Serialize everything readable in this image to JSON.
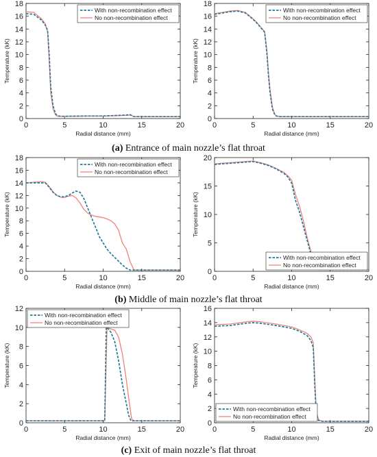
{
  "colors": {
    "with_effect": "#1f7a99",
    "no_effect": "#f08078",
    "axis": "#222222"
  },
  "captions": [
    {
      "label": "(a)",
      "text": " Entrance of main nozzle’s flat throat"
    },
    {
      "label": "(b)",
      "text": " Middle of main nozzle’s flat throat"
    },
    {
      "label": "(c)",
      "text": " Exit of main nozzle’s flat throat"
    }
  ],
  "chart_data": [
    {
      "type": "line",
      "panel": "a-left",
      "xlabel": "Radial distance (mm)",
      "ylabel": "Temperature (kK)",
      "xlim": [
        0,
        20
      ],
      "ylim": [
        0,
        18
      ],
      "xticks": [
        0,
        5,
        10,
        15,
        20
      ],
      "yticks": [
        0,
        2,
        4,
        6,
        8,
        10,
        12,
        14,
        16,
        18
      ],
      "legend": "top-right",
      "series": [
        {
          "name": "With non-recombination effect",
          "style": "dashed",
          "x": [
            0,
            1,
            2,
            2.5,
            2.8,
            3.0,
            3.2,
            3.5,
            3.8,
            4.0,
            4.2,
            4.5,
            5,
            8,
            10,
            12,
            13,
            13.5,
            14,
            15,
            20
          ],
          "y": [
            16.4,
            16.3,
            15.4,
            14.6,
            13.8,
            10.0,
            5.0,
            2.0,
            0.8,
            0.5,
            0.4,
            0.35,
            0.35,
            0.4,
            0.4,
            0.5,
            0.55,
            0.6,
            0.3,
            0.3,
            0.3
          ]
        },
        {
          "name": "No non-recombination effect",
          "style": "solid",
          "x": [
            0,
            1,
            2,
            2.5,
            2.8,
            3.0,
            3.2,
            3.5,
            3.8,
            4.0,
            4.5,
            5,
            8,
            10,
            12,
            13,
            13.5,
            14,
            15,
            20
          ],
          "y": [
            16.7,
            16.6,
            15.6,
            14.8,
            13.5,
            9.0,
            4.0,
            1.5,
            0.6,
            0.4,
            0.35,
            0.35,
            0.4,
            0.4,
            0.45,
            0.5,
            0.55,
            0.3,
            0.3,
            0.3
          ]
        }
      ]
    },
    {
      "type": "line",
      "panel": "a-right",
      "xlabel": "Radial distance (mm)",
      "ylabel": "Temperature (kK)",
      "xlim": [
        0,
        20
      ],
      "ylim": [
        0,
        18
      ],
      "xticks": [
        0,
        5,
        10,
        15,
        20
      ],
      "yticks": [
        0,
        2,
        4,
        6,
        8,
        10,
        12,
        14,
        16,
        18
      ],
      "legend": "top-right",
      "series": [
        {
          "name": "With non-recombination effect",
          "style": "dashed",
          "x": [
            0,
            1,
            2,
            3,
            4,
            5,
            5.5,
            6,
            6.5,
            6.8,
            7.0,
            7.2,
            7.5,
            7.8,
            8.0,
            8.5,
            10,
            15,
            20
          ],
          "y": [
            16.3,
            16.5,
            16.7,
            16.8,
            16.5,
            15.5,
            14.9,
            14.2,
            13.5,
            10.0,
            6.5,
            4.0,
            1.5,
            0.6,
            0.4,
            0.3,
            0.3,
            0.3,
            0.3
          ]
        },
        {
          "name": "No non-recombination effect",
          "style": "solid",
          "x": [
            0,
            1,
            2,
            3,
            4,
            5,
            5.5,
            6,
            6.5,
            6.8,
            7.0,
            7.2,
            7.5,
            7.8,
            8.0,
            8.5,
            10,
            15,
            20
          ],
          "y": [
            16.4,
            16.6,
            16.8,
            16.9,
            16.6,
            15.6,
            15.0,
            14.3,
            13.6,
            10.5,
            7.0,
            4.5,
            1.8,
            0.7,
            0.4,
            0.3,
            0.3,
            0.3,
            0.3
          ]
        }
      ]
    },
    {
      "type": "line",
      "panel": "b-left",
      "xlabel": "Radial distance (mm)",
      "ylabel": "Temperature (kK)",
      "xlim": [
        0,
        20
      ],
      "ylim": [
        0,
        18
      ],
      "xticks": [
        0,
        5,
        10,
        15,
        20
      ],
      "yticks": [
        0,
        2,
        4,
        6,
        8,
        10,
        12,
        14,
        16,
        18
      ],
      "legend": "top-right",
      "series": [
        {
          "name": "With non-recombination effect",
          "style": "dashed",
          "x": [
            0,
            1,
            2,
            2.5,
            3,
            3.5,
            4,
            4.5,
            5,
            5.5,
            6,
            6.5,
            7,
            7.5,
            8,
            8.5,
            9,
            9.5,
            10,
            10.5,
            11,
            11.5,
            12,
            12.5,
            13,
            13.5,
            14,
            15,
            20
          ],
          "y": [
            14.0,
            14.0,
            14.0,
            14.0,
            13.3,
            12.5,
            12.0,
            11.8,
            11.8,
            12.0,
            12.4,
            12.7,
            12.5,
            11.5,
            10.0,
            8.5,
            7.0,
            5.5,
            4.5,
            3.5,
            2.8,
            2.2,
            1.6,
            1.0,
            0.5,
            0.2,
            0.2,
            0.2,
            0.2
          ]
        },
        {
          "name": "No non-recombination effect",
          "style": "solid",
          "x": [
            0,
            1,
            2,
            2.5,
            3,
            3.5,
            4,
            4.5,
            5,
            5.5,
            6,
            6.5,
            7,
            7.5,
            8,
            8.5,
            9,
            9.5,
            10,
            10.5,
            11,
            11.5,
            12,
            12.5,
            13,
            13.5,
            14,
            15,
            20
          ],
          "y": [
            14.0,
            14.1,
            14.2,
            14.1,
            13.4,
            12.6,
            12.0,
            11.7,
            11.7,
            11.9,
            12.0,
            11.6,
            10.8,
            9.8,
            9.2,
            8.9,
            8.7,
            8.6,
            8.5,
            8.3,
            8.0,
            7.5,
            6.5,
            4.5,
            3.5,
            1.5,
            0.2,
            0.2,
            0.2
          ]
        }
      ]
    },
    {
      "type": "line",
      "panel": "b-right",
      "xlabel": "Radial distance (mm)",
      "ylabel": "Temperature (kK)",
      "xlim": [
        0,
        20
      ],
      "ylim": [
        0,
        20
      ],
      "xticks": [
        0,
        5,
        10,
        15,
        20
      ],
      "yticks": [
        0,
        5,
        10,
        15,
        20
      ],
      "legend": "bottom-right",
      "series": [
        {
          "name": "With non-recombination effect",
          "style": "dashed",
          "x": [
            0,
            1,
            2,
            3,
            4,
            5,
            6,
            7,
            8,
            9,
            9.5,
            10,
            10.5,
            11,
            11.5,
            12,
            12.5,
            13,
            13.5,
            14,
            15,
            20
          ],
          "y": [
            18.8,
            18.9,
            19.0,
            19.1,
            19.2,
            19.3,
            19.0,
            18.6,
            18.0,
            17.2,
            16.6,
            15.5,
            12.5,
            10.5,
            8.0,
            5.5,
            3.0,
            1.0,
            0.3,
            0.3,
            0.3,
            0.3
          ]
        },
        {
          "name": "No non-recombination effect",
          "style": "solid",
          "x": [
            0,
            1,
            2,
            3,
            4,
            5,
            6,
            7,
            8,
            9,
            9.5,
            10,
            10.5,
            11,
            11.5,
            12,
            12.5,
            13,
            13.5,
            14,
            15,
            20
          ],
          "y": [
            18.9,
            19.0,
            19.1,
            19.2,
            19.3,
            19.4,
            19.1,
            18.7,
            18.1,
            17.4,
            16.8,
            16.0,
            13.5,
            11.5,
            9.0,
            6.0,
            3.5,
            1.2,
            0.3,
            0.3,
            0.3,
            0.3
          ]
        }
      ]
    },
    {
      "type": "line",
      "panel": "c-left",
      "xlabel": "Radial distance (mm)",
      "ylabel": "Temperature (kK)",
      "xlim": [
        0,
        20
      ],
      "ylim": [
        0,
        12
      ],
      "xticks": [
        0,
        5,
        10,
        15,
        20
      ],
      "yticks": [
        0,
        2,
        4,
        6,
        8,
        10,
        12
      ],
      "legend": "top-left",
      "series": [
        {
          "name": "With non-recombination effect",
          "style": "dashed",
          "x": [
            0,
            5,
            10.2,
            10.4,
            10.6,
            11,
            11.5,
            12,
            12.5,
            13,
            13.3,
            13.6,
            14,
            15,
            20
          ],
          "y": [
            0.2,
            0.2,
            0.2,
            10.0,
            9.9,
            9.5,
            8.5,
            6.5,
            4.0,
            2.0,
            0.8,
            0.2,
            0.2,
            0.2,
            0.2
          ]
        },
        {
          "name": "No non-recombination effect",
          "style": "solid",
          "x": [
            0,
            5,
            10.2,
            10.5,
            10.8,
            11.5,
            12,
            12.5,
            13,
            13.4,
            13.7,
            14,
            15,
            20
          ],
          "y": [
            0.2,
            0.2,
            0.2,
            9.9,
            9.9,
            9.7,
            9.0,
            7.2,
            4.5,
            2.0,
            0.4,
            0.2,
            0.2,
            0.2
          ]
        }
      ]
    },
    {
      "type": "line",
      "panel": "c-right",
      "xlabel": "Radial distance (mm)",
      "ylabel": "Temperature (kK)",
      "xlim": [
        0,
        20
      ],
      "ylim": [
        0,
        16
      ],
      "xticks": [
        0,
        5,
        10,
        15,
        20
      ],
      "yticks": [
        0,
        2,
        4,
        6,
        8,
        10,
        12,
        14,
        16
      ],
      "legend": "bottom-left",
      "series": [
        {
          "name": "With non-recombination effect",
          "style": "dashed",
          "x": [
            0,
            2,
            4,
            5,
            6,
            8,
            10,
            11,
            12,
            12.5,
            12.8,
            13.0,
            13.2,
            13.5,
            14,
            15,
            20
          ],
          "y": [
            13.5,
            13.6,
            13.9,
            14.0,
            13.9,
            13.6,
            13.2,
            12.8,
            12.2,
            11.5,
            10.5,
            5.0,
            1.0,
            0.3,
            0.2,
            0.2,
            0.2
          ]
        },
        {
          "name": "No non-recombination effect",
          "style": "solid",
          "x": [
            0,
            2,
            4,
            5,
            6,
            8,
            10,
            11,
            12,
            12.5,
            12.8,
            13.0,
            13.2,
            13.5,
            14,
            15,
            20
          ],
          "y": [
            13.7,
            13.8,
            14.1,
            14.2,
            14.1,
            13.8,
            13.4,
            13.0,
            12.5,
            12.0,
            11.2,
            6.0,
            1.5,
            0.4,
            0.2,
            0.2,
            0.2
          ]
        }
      ]
    }
  ]
}
